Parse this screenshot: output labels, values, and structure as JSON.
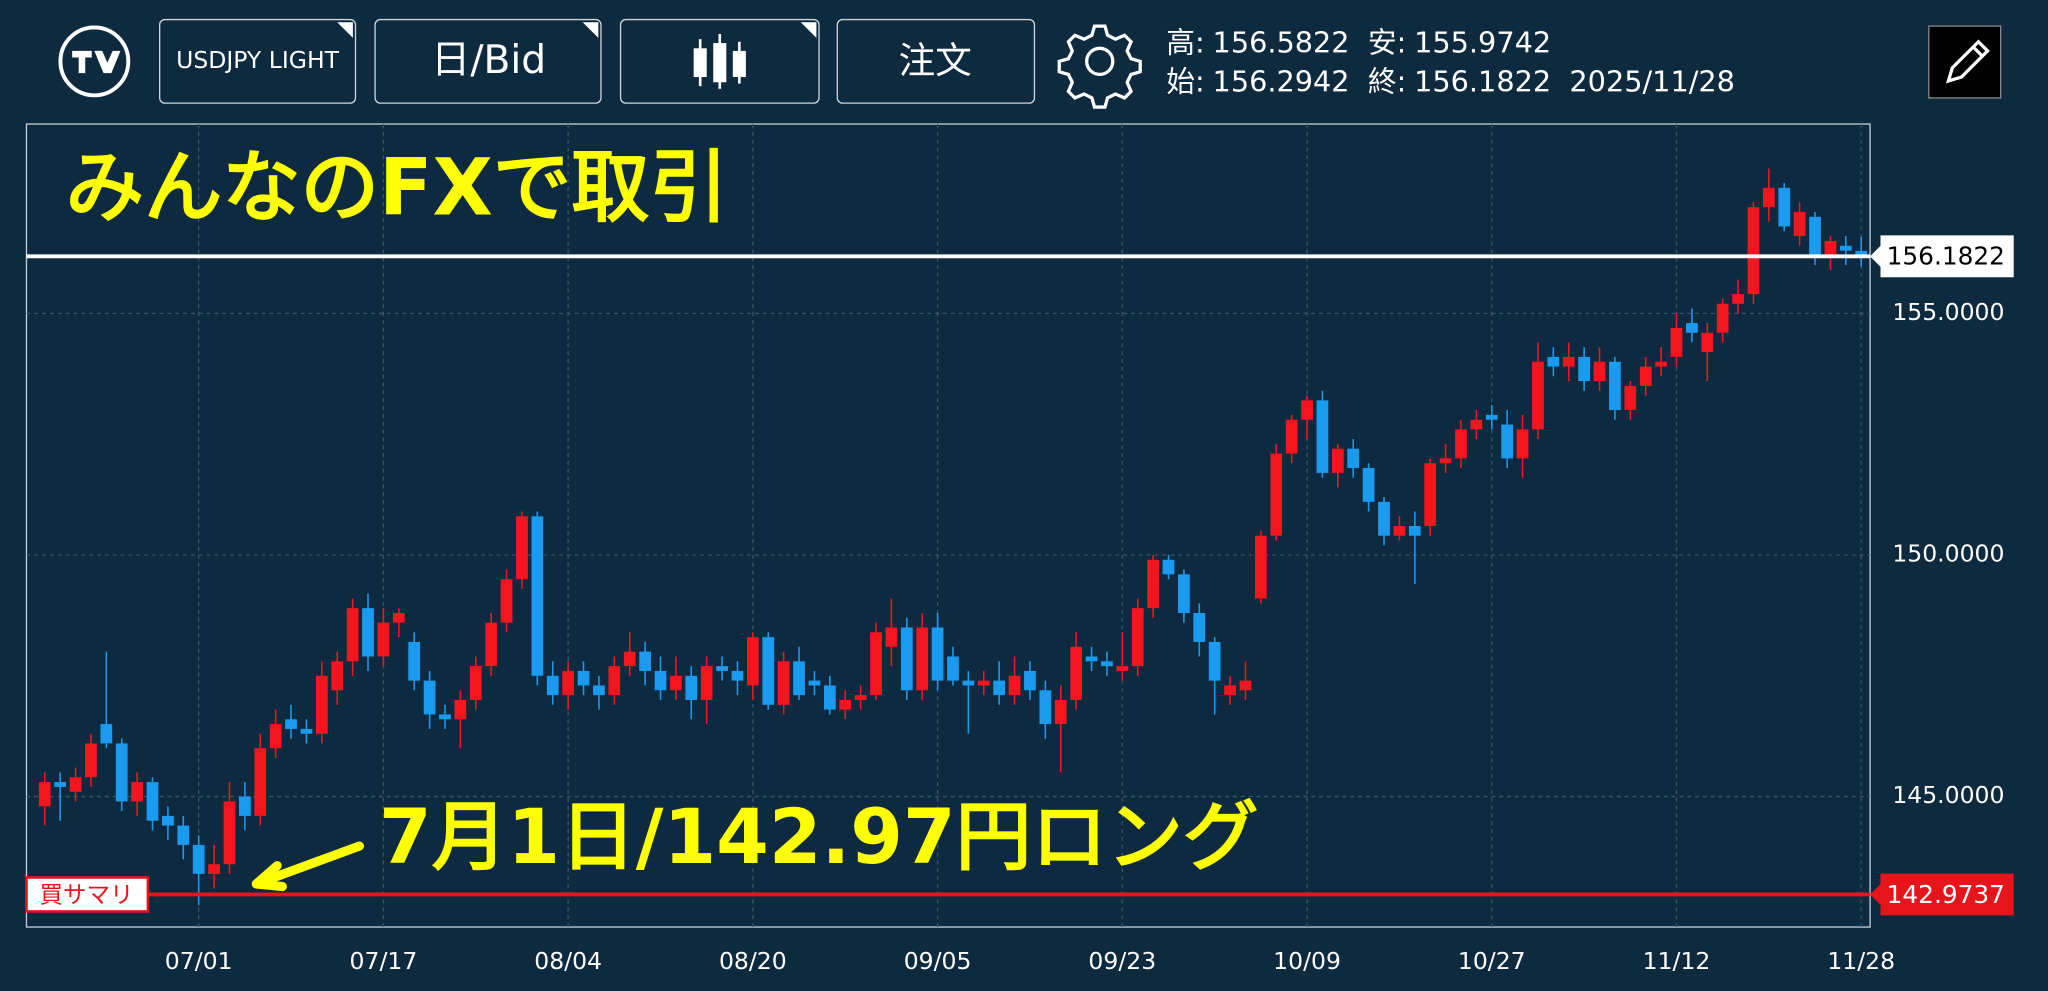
{
  "header": {
    "symbol": "USDJPY LIGHT",
    "timeframe": "日/Bid",
    "order": "注文",
    "high_label": "高:",
    "low_label": "安:",
    "open_label": "始:",
    "close_label": "終:",
    "date": "2025/11/28"
  },
  "chart_data": {
    "type": "candlestick",
    "categories": [
      null,
      null,
      null,
      null,
      null,
      null,
      null,
      null,
      null,
      null,
      "07/01",
      null,
      null,
      null,
      null,
      null,
      null,
      null,
      null,
      null,
      null,
      null,
      "07/17",
      null,
      null,
      null,
      null,
      null,
      null,
      null,
      null,
      null,
      null,
      null,
      "08/04",
      null,
      null,
      null,
      null,
      null,
      null,
      null,
      null,
      null,
      null,
      null,
      "08/20",
      null,
      null,
      null,
      null,
      null,
      null,
      null,
      null,
      null,
      null,
      null,
      "09/05",
      null,
      null,
      null,
      null,
      null,
      null,
      null,
      null,
      null,
      null,
      null,
      "09/23",
      null,
      null,
      null,
      null,
      null,
      null,
      null,
      null,
      null,
      null,
      null,
      "10/09",
      null,
      null,
      null,
      null,
      null,
      null,
      null,
      null,
      null,
      null,
      null,
      "10/27",
      null,
      null,
      null,
      null,
      null,
      null,
      null,
      null,
      null,
      null,
      null,
      "11/12",
      null,
      null,
      null,
      null,
      null,
      null,
      null,
      null,
      null,
      null,
      null,
      "11/28"
    ],
    "ohlc": [
      [
        144.8,
        145.5,
        144.4,
        145.3
      ],
      [
        145.3,
        145.5,
        144.5,
        145.2
      ],
      [
        145.1,
        145.6,
        144.9,
        145.4
      ],
      [
        145.4,
        146.3,
        145.2,
        146.1
      ],
      [
        146.5,
        148.0,
        146.0,
        146.1
      ],
      [
        146.1,
        146.2,
        144.7,
        144.9
      ],
      [
        144.9,
        145.5,
        144.6,
        145.3
      ],
      [
        145.3,
        145.4,
        144.3,
        144.5
      ],
      [
        144.6,
        144.8,
        144.1,
        144.4
      ],
      [
        144.4,
        144.6,
        143.7,
        144.0
      ],
      [
        144.0,
        144.2,
        142.75,
        143.4
      ],
      [
        143.4,
        144.0,
        143.1,
        143.6
      ],
      [
        143.6,
        145.3,
        143.4,
        144.9
      ],
      [
        145.0,
        145.3,
        144.3,
        144.6
      ],
      [
        144.6,
        146.3,
        144.4,
        146.0
      ],
      [
        146.0,
        146.8,
        145.8,
        146.5
      ],
      [
        146.6,
        146.9,
        146.2,
        146.4
      ],
      [
        146.4,
        146.6,
        146.1,
        146.3
      ],
      [
        146.3,
        147.8,
        146.1,
        147.5
      ],
      [
        147.2,
        148.0,
        146.9,
        147.8
      ],
      [
        147.8,
        149.1,
        147.5,
        148.9
      ],
      [
        148.9,
        149.2,
        147.6,
        147.9
      ],
      [
        147.9,
        148.9,
        147.7,
        148.6
      ],
      [
        148.6,
        148.9,
        148.3,
        148.8
      ],
      [
        148.2,
        148.4,
        147.2,
        147.4
      ],
      [
        147.4,
        147.6,
        146.4,
        146.7
      ],
      [
        146.7,
        146.9,
        146.4,
        146.6
      ],
      [
        146.6,
        147.2,
        146.0,
        147.0
      ],
      [
        147.0,
        147.9,
        146.8,
        147.7
      ],
      [
        147.7,
        148.8,
        147.5,
        148.6
      ],
      [
        148.6,
        149.7,
        148.4,
        149.5
      ],
      [
        149.5,
        150.9,
        149.3,
        150.8
      ],
      [
        150.8,
        150.9,
        147.3,
        147.5
      ],
      [
        147.5,
        147.8,
        146.9,
        147.1
      ],
      [
        147.1,
        147.8,
        146.8,
        147.6
      ],
      [
        147.6,
        147.8,
        147.1,
        147.3
      ],
      [
        147.3,
        147.5,
        146.8,
        147.1
      ],
      [
        147.1,
        147.9,
        146.9,
        147.7
      ],
      [
        147.7,
        148.4,
        147.5,
        148.0
      ],
      [
        148.0,
        148.2,
        147.3,
        147.6
      ],
      [
        147.6,
        147.9,
        147.0,
        147.2
      ],
      [
        147.2,
        147.9,
        147.0,
        147.5
      ],
      [
        147.5,
        147.7,
        146.6,
        147.0
      ],
      [
        147.0,
        147.9,
        146.5,
        147.7
      ],
      [
        147.7,
        147.9,
        147.4,
        147.6
      ],
      [
        147.6,
        147.8,
        147.1,
        147.4
      ],
      [
        147.3,
        148.4,
        147.0,
        148.3
      ],
      [
        148.3,
        148.4,
        146.8,
        146.9
      ],
      [
        146.9,
        148.0,
        146.7,
        147.8
      ],
      [
        147.8,
        148.1,
        147.0,
        147.1
      ],
      [
        147.4,
        147.6,
        147.1,
        147.3
      ],
      [
        147.3,
        147.5,
        146.7,
        146.8
      ],
      [
        146.8,
        147.2,
        146.6,
        147.0
      ],
      [
        147.0,
        147.3,
        146.8,
        147.1
      ],
      [
        147.1,
        148.6,
        147.0,
        148.4
      ],
      [
        148.1,
        149.1,
        147.7,
        148.5
      ],
      [
        148.5,
        148.7,
        147.0,
        147.2
      ],
      [
        147.2,
        148.8,
        147.0,
        148.5
      ],
      [
        148.5,
        148.8,
        147.2,
        147.4
      ],
      [
        147.9,
        148.1,
        147.3,
        147.4
      ],
      [
        147.4,
        147.6,
        146.3,
        147.3
      ],
      [
        147.3,
        147.6,
        147.1,
        147.4
      ],
      [
        147.4,
        147.8,
        146.9,
        147.1
      ],
      [
        147.1,
        147.9,
        146.9,
        147.5
      ],
      [
        147.6,
        147.8,
        147.0,
        147.2
      ],
      [
        147.2,
        147.4,
        146.2,
        146.5
      ],
      [
        146.5,
        147.3,
        145.5,
        147.0
      ],
      [
        147.0,
        148.4,
        146.8,
        148.1
      ],
      [
        147.9,
        148.1,
        147.6,
        147.8
      ],
      [
        147.8,
        148.0,
        147.5,
        147.7
      ],
      [
        147.6,
        148.4,
        147.4,
        147.7
      ],
      [
        147.7,
        149.1,
        147.5,
        148.9
      ],
      [
        148.9,
        150.0,
        148.7,
        149.9
      ],
      [
        149.9,
        150.0,
        149.5,
        149.6
      ],
      [
        149.6,
        149.7,
        148.6,
        148.8
      ],
      [
        148.8,
        149.0,
        147.9,
        148.2
      ],
      [
        148.2,
        148.3,
        146.7,
        147.4
      ],
      [
        147.1,
        147.5,
        146.9,
        147.3
      ],
      [
        147.2,
        147.8,
        147.0,
        147.4
      ],
      [
        149.1,
        150.5,
        149.0,
        150.4
      ],
      [
        150.4,
        152.3,
        150.3,
        152.1
      ],
      [
        152.1,
        152.9,
        151.9,
        152.8
      ],
      [
        152.8,
        153.3,
        152.4,
        153.2
      ],
      [
        153.2,
        153.4,
        151.6,
        151.7
      ],
      [
        151.7,
        152.3,
        151.4,
        152.2
      ],
      [
        152.2,
        152.4,
        151.6,
        151.8
      ],
      [
        151.8,
        151.9,
        150.9,
        151.1
      ],
      [
        151.1,
        151.2,
        150.2,
        150.4
      ],
      [
        150.4,
        150.8,
        150.3,
        150.6
      ],
      [
        150.6,
        150.9,
        149.4,
        150.4
      ],
      [
        150.6,
        152.0,
        150.4,
        151.9
      ],
      [
        151.9,
        152.3,
        151.7,
        152.0
      ],
      [
        152.0,
        152.8,
        151.8,
        152.6
      ],
      [
        152.6,
        153.0,
        152.4,
        152.8
      ],
      [
        152.9,
        153.1,
        152.6,
        152.8
      ],
      [
        152.7,
        153.0,
        151.8,
        152.0
      ],
      [
        152.0,
        152.9,
        151.6,
        152.6
      ],
      [
        152.6,
        154.4,
        152.4,
        154.0
      ],
      [
        154.1,
        154.3,
        153.7,
        153.9
      ],
      [
        153.9,
        154.4,
        153.6,
        154.1
      ],
      [
        154.1,
        154.3,
        153.4,
        153.6
      ],
      [
        153.6,
        154.3,
        153.4,
        154.0
      ],
      [
        154.0,
        154.1,
        152.8,
        153.0
      ],
      [
        153.0,
        153.6,
        152.8,
        153.5
      ],
      [
        153.5,
        154.1,
        153.3,
        153.9
      ],
      [
        153.9,
        154.3,
        153.7,
        154.0
      ],
      [
        154.1,
        155.0,
        153.9,
        154.7
      ],
      [
        154.8,
        155.1,
        154.4,
        154.6
      ],
      [
        154.2,
        154.8,
        153.6,
        154.6
      ],
      [
        154.6,
        155.3,
        154.4,
        155.2
      ],
      [
        155.2,
        155.7,
        155.0,
        155.4
      ],
      [
        155.4,
        157.3,
        155.2,
        157.2
      ],
      [
        157.2,
        158.0,
        156.9,
        157.6
      ],
      [
        157.6,
        157.7,
        156.7,
        156.8
      ],
      [
        156.6,
        157.3,
        156.4,
        157.1
      ],
      [
        157.0,
        157.1,
        156.0,
        156.2
      ],
      [
        156.2,
        156.6,
        155.9,
        156.5
      ],
      [
        156.4,
        156.6,
        156.0,
        156.3
      ],
      [
        156.2942,
        156.5822,
        155.9742,
        156.1822
      ]
    ],
    "up_color": "#f5151e",
    "down_color": "#1a9bf0",
    "ylim": [
      142.3,
      158.92
    ],
    "yticks": [
      {
        "value": 145,
        "label": "145.0000"
      },
      {
        "value": 150,
        "label": "150.0000"
      },
      {
        "value": 155,
        "label": "155.0000"
      }
    ],
    "grid": true,
    "price_lines": [
      {
        "value": 156.1822,
        "color": "#ffffff"
      },
      {
        "value": 142.9737,
        "color": "#e8141c"
      }
    ],
    "annotations": {
      "title": "みんなのFXで取引",
      "note": "7月1日/142.97円ロング",
      "summary": "買サマリ"
    }
  }
}
